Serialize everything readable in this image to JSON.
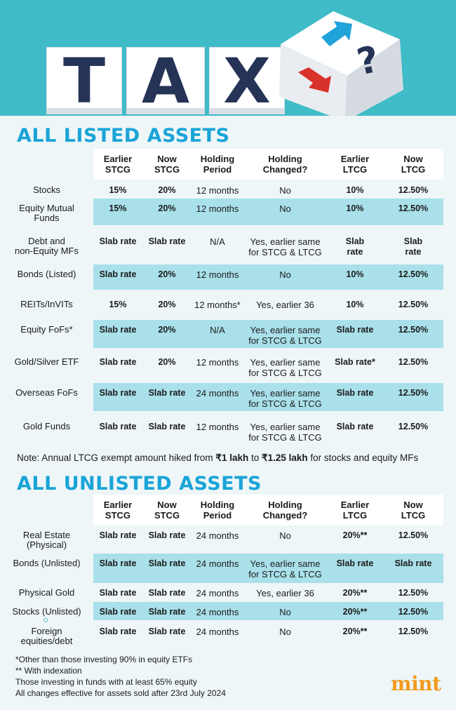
{
  "header": {
    "letters": [
      "T",
      "A",
      "X"
    ]
  },
  "listed": {
    "title": "ALL LISTED ASSETS",
    "columns": [
      "Earlier\nSTCG",
      "Now\nSTCG",
      "Holding\nPeriod",
      "Holding\nChanged?",
      "Earlier\nLTCG",
      "Now\nLTCG"
    ],
    "rows": [
      {
        "asset": "Stocks",
        "earlier_stcg": "15%",
        "now_stcg": "20%",
        "holding": "12 months",
        "changed": "No",
        "earlier_ltcg": "10%",
        "now_ltcg": "12.50%"
      },
      {
        "asset": "Equity Mutual\nFunds",
        "earlier_stcg": "15%",
        "now_stcg": "20%",
        "holding": "12 months",
        "changed": "No",
        "earlier_ltcg": "10%",
        "now_ltcg": "12.50%"
      },
      {
        "asset": "Debt and\nnon-Equity MFs",
        "earlier_stcg": "Slab rate",
        "now_stcg": "Slab rate",
        "holding": "N/A",
        "changed": "Yes, earlier same\nfor STCG & LTCG",
        "earlier_ltcg": "Slab\nrate",
        "now_ltcg": "Slab\nrate"
      },
      {
        "asset": "Bonds (Listed)",
        "earlier_stcg": "Slab rate",
        "now_stcg": "20%",
        "holding": "12 months",
        "changed": "No",
        "earlier_ltcg": "10%",
        "now_ltcg": "12.50%"
      },
      {
        "asset": "REITs/InVITs",
        "earlier_stcg": "15%",
        "now_stcg": "20%",
        "holding": "12 months*",
        "changed": "Yes, earlier 36",
        "earlier_ltcg": "10%",
        "now_ltcg": "12.50%"
      },
      {
        "asset": "Equity FoFs*",
        "earlier_stcg": "Slab rate",
        "now_stcg": "20%",
        "holding": "N/A",
        "changed": "Yes, earlier same\nfor STCG & LTCG",
        "earlier_ltcg": "Slab rate",
        "now_ltcg": "12.50%"
      },
      {
        "asset": "Gold/Silver ETF",
        "earlier_stcg": "Slab rate",
        "now_stcg": "20%",
        "holding": "12 months",
        "changed": "Yes, earlier same\nfor STCG & LTCG",
        "earlier_ltcg": "Slab rate*",
        "now_ltcg": "12.50%"
      },
      {
        "asset": "Overseas FoFs",
        "earlier_stcg": "Slab rate",
        "now_stcg": "Slab rate",
        "holding": "24 months",
        "changed": "Yes, earlier same\nfor STCG & LTCG",
        "earlier_ltcg": "Slab rate",
        "now_ltcg": "12.50%"
      },
      {
        "asset": "Gold Funds",
        "earlier_stcg": "Slab rate",
        "now_stcg": "Slab rate",
        "holding": "12 months",
        "changed": "Yes, earlier same\nfor STCG & LTCG",
        "earlier_ltcg": "Slab rate",
        "now_ltcg": "12.50%"
      }
    ]
  },
  "note": {
    "prefix": "Note: Annual LTCG exempt amount hiked from ",
    "from": "₹1 lakh",
    "middle": " to ",
    "to": "₹1.25 lakh",
    "suffix": " for stocks and equity MFs"
  },
  "unlisted": {
    "title": "ALL UNLISTED ASSETS",
    "columns": [
      "Earlier\nSTCG",
      "Now\nSTCG",
      "Holding\nPeriod",
      "Holding\nChanged?",
      "Earlier\nLTCG",
      "Now\nLTCG"
    ],
    "rows": [
      {
        "asset": "Real Estate\n(Physical)",
        "earlier_stcg": "Slab rate",
        "now_stcg": "Slab rate",
        "holding": "24 months",
        "changed": "No",
        "earlier_ltcg": "20%**",
        "now_ltcg": "12.50%"
      },
      {
        "asset": "Bonds (Unlisted)",
        "earlier_stcg": "Slab rate",
        "now_stcg": "Slab rate",
        "holding": "24 months",
        "changed": "Yes, earlier same\nfor STCG & LTCG",
        "earlier_ltcg": "Slab rate",
        "now_ltcg": "Slab rate"
      },
      {
        "asset": "Physical Gold",
        "earlier_stcg": "Slab rate",
        "now_stcg": "Slab rate",
        "holding": "24 months",
        "changed": "Yes, earlier 36",
        "earlier_ltcg": "20%**",
        "now_ltcg": "12.50%"
      },
      {
        "asset": "Stocks (Unlisted)",
        "earlier_stcg": "Slab rate",
        "now_stcg": "Slab rate",
        "holding": "24 months",
        "changed": "No",
        "earlier_ltcg": "20%**",
        "now_ltcg": "12.50%"
      },
      {
        "asset": "Foreign\nequities/debt",
        "earlier_stcg": "Slab rate",
        "now_stcg": "Slab rate",
        "holding": "24 months",
        "changed": "No",
        "earlier_ltcg": "20%**",
        "now_ltcg": "12.50%"
      }
    ]
  },
  "footnotes": [
    "*Other than those investing 90% in equity ETFs",
    "** With indexation",
    "Those investing in funds with at least 65% equity",
    "All changes effective for assets sold after 23rd July 2024"
  ],
  "brand": "mint",
  "colors": {
    "header_bg": "#3fbcc8",
    "title": "#1aa4d8",
    "band": "#a9e0ea",
    "letters": "#253356",
    "arrow_up": "#1fa3d9",
    "arrow_down": "#d9322b",
    "brand": "#f39a1f"
  }
}
